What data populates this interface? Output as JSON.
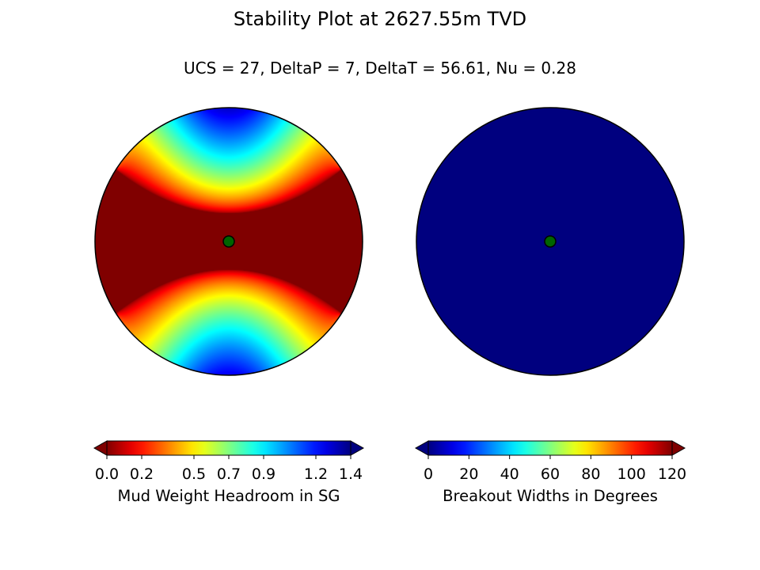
{
  "title": "Stability Plot at 2627.55m TVD",
  "subtitle": "UCS = 27, DeltaP = 7, DeltaT = 56.61, Nu = 0.28",
  "chart_data": [
    {
      "type": "heatmap",
      "projection": "polar stereonet (lower hemisphere)",
      "colormap": "jet",
      "colorbar": {
        "label": "Mud Weight Headroom in SG",
        "min": 0.0,
        "max": 1.4,
        "ticks": [
          0.0,
          0.2,
          0.5,
          0.7,
          0.9,
          1.2,
          1.4
        ],
        "tick_labels": [
          "0.0",
          "0.2",
          "0.5",
          "0.7",
          "0.9",
          "1.2",
          "1.4"
        ],
        "extend": "both"
      },
      "field": {
        "description_values": "0.0 over horizontal band through center; rises toward top and bottom edges reaching ~1.3 near north and south",
        "max_value_north": 1.3,
        "max_value_south": 1.25,
        "center_value": 0.0
      },
      "marker": {
        "label": "well",
        "color": "#006400"
      }
    },
    {
      "type": "heatmap",
      "projection": "polar stereonet (lower hemisphere)",
      "colormap": "jet",
      "colorbar": {
        "label": "Breakout Widths in Degrees",
        "min": 0,
        "max": 120,
        "ticks": [
          0,
          20,
          40,
          60,
          80,
          100,
          120
        ],
        "tick_labels": [
          "0",
          "20",
          "40",
          "60",
          "80",
          "100",
          "120"
        ],
        "extend": "both"
      },
      "field": {
        "uniform_value": 0
      },
      "marker": {
        "label": "well",
        "color": "#006400"
      }
    }
  ],
  "colors": {
    "low_end": "#00007f",
    "high_end": "#7f0000",
    "marker_fill": "#006400"
  }
}
